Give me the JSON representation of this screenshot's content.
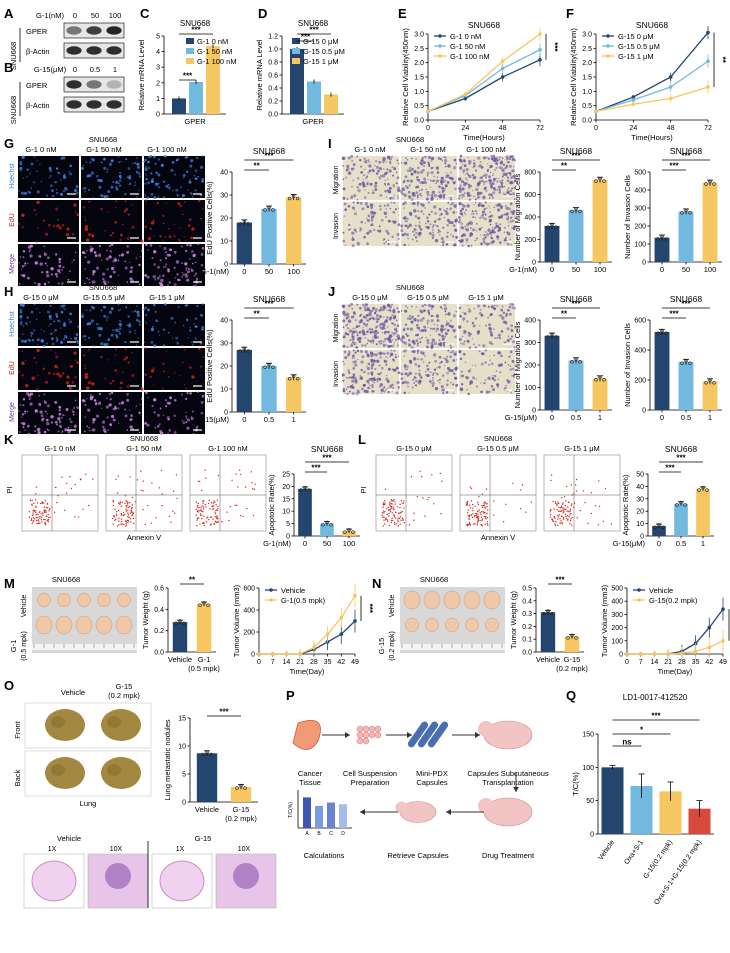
{
  "figure": {
    "palette": {
      "navy": "#24466e",
      "sky": "#72b9e0",
      "gold": "#f6c661",
      "red": "#d84a3e",
      "blot": "#1a1a1a",
      "hoechst": "#3b7fd6",
      "edu": "#c8211e",
      "merge": "#7a3a9e",
      "crystal": "#6e5fa5",
      "tumor": "#f0c8a8",
      "lung": "#a48740",
      "he": "#c58fc7"
    },
    "A": {
      "label": "A",
      "cell": "SNU668",
      "dose_title": "G-1(nM)",
      "doses": [
        "0",
        "50",
        "100"
      ],
      "bands": [
        "GPER",
        "β-Actin"
      ],
      "intensity": {
        "GPER": [
          0.55,
          0.82,
          0.95
        ],
        "β-Actin": [
          0.9,
          0.9,
          0.9
        ]
      }
    },
    "B": {
      "label": "B",
      "cell": "SNU668",
      "dose_title": "G-15(μM)",
      "doses": [
        "0",
        "0.5",
        "1"
      ],
      "bands": [
        "GPER",
        "β-Actin"
      ],
      "intensity": {
        "GPER": [
          0.9,
          0.55,
          0.25
        ],
        "β-Actin": [
          0.9,
          0.9,
          0.9
        ]
      }
    },
    "C": {
      "label": "C",
      "title": "SNU668",
      "ylabel": "Relative mRNA Level",
      "xlabel": "GPER",
      "legend": [
        "G-1 0 nM",
        "G-1 50 nM",
        "G-1 100 nM"
      ],
      "yticks": [
        "0",
        "1",
        "2",
        "3",
        "4",
        "5"
      ],
      "sig": [
        "***",
        "***"
      ]
    },
    "D": {
      "label": "D",
      "title": "SNU668",
      "ylabel": "Relative mRNA Level",
      "xlabel": "GPER",
      "legend": [
        "G-15 0 μM",
        "G-15 0.5 μM",
        "G-15 1 μM"
      ],
      "yticks": [
        "0.0",
        "0.2",
        "0.4",
        "0.6",
        "0.8",
        "1.0",
        "1.2"
      ],
      "sig": [
        "***",
        "***"
      ]
    },
    "E": {
      "label": "E",
      "title": "SNU668",
      "ylabel": "Relative Cell Viability(450nm)",
      "xlabel": "Time(Hours)",
      "legend": [
        "G-1 0 nM",
        "G-1 50 nM",
        "G-1 100 nM"
      ],
      "xticks": [
        "0",
        "24",
        "48",
        "72"
      ],
      "yticks": [
        "0.0",
        "0.5",
        "1.0",
        "1.5",
        "2.0",
        "2.5",
        "3.0"
      ],
      "sig": [
        "***",
        "*"
      ]
    },
    "F": {
      "label": "F",
      "title": "SNU668",
      "ylabel": "Relative Cell Viability(450nm)",
      "xlabel": "Time(Hours)",
      "legend": [
        "G-15 0 μM",
        "G-15 0.5 μM",
        "G-15 1 μM"
      ],
      "xticks": [
        "0",
        "24",
        "48",
        "72"
      ],
      "yticks": [
        "0.0",
        "0.5",
        "1.0",
        "1.5",
        "2.0",
        "2.5",
        "3.0"
      ],
      "sig": [
        "**",
        "***"
      ]
    },
    "G": {
      "label": "G",
      "cell": "SNU668",
      "cols": [
        "G-1 0 nM",
        "G-1 50 nM",
        "G-1 100 nM"
      ],
      "rows": [
        "Hoechst",
        "EdU",
        "Merge"
      ],
      "chart_title": "SNU668",
      "ylabel": "EdU Positive Cells(%)",
      "xcap": "G-1(nM)",
      "xticks": [
        "0",
        "50",
        "100"
      ],
      "yticks": [
        "0",
        "10",
        "20",
        "30",
        "40"
      ],
      "sig": [
        "***",
        "**"
      ]
    },
    "H": {
      "label": "H",
      "cell": "SNU668",
      "cols": [
        "G-15 0 μM",
        "G-15 0.5 μM",
        "G-15 1 μM"
      ],
      "rows": [
        "Hoechst",
        "EdU",
        "Merge"
      ],
      "chart_title": "SNU668",
      "ylabel": "EdU Positive Cells(%)",
      "xcap": "G-15(μM)",
      "xticks": [
        "0",
        "0.5",
        "1"
      ],
      "yticks": [
        "0",
        "10",
        "20",
        "30",
        "40"
      ],
      "sig": [
        "***",
        "**"
      ]
    },
    "I": {
      "label": "I",
      "cell": "SNU668",
      "cols": [
        "G-1 0 nM",
        "G-1 50 nM",
        "G-1 100 nM"
      ],
      "rows": [
        "Migration",
        "Invasion"
      ],
      "c1": {
        "title": "SNU668",
        "ylabel": "Number of Migration Cells",
        "yticks": [
          "0",
          "200",
          "400",
          "600",
          "800"
        ],
        "sig": [
          "***",
          "**"
        ]
      },
      "c2": {
        "title": "SNU668",
        "ylabel": "Number of Invasion Cells",
        "yticks": [
          "0",
          "100",
          "200",
          "300",
          "400",
          "500"
        ],
        "sig": [
          "***",
          "***"
        ]
      },
      "xcap": "G-1(nM)",
      "xticks": [
        "0",
        "50",
        "100"
      ]
    },
    "J": {
      "label": "J",
      "cell": "SNU668",
      "cols": [
        "G-15 0 μM",
        "G-15 0.5 μM",
        "G-15 1 μM"
      ],
      "rows": [
        "Migration",
        "Invasion"
      ],
      "c1": {
        "title": "SNU668",
        "ylabel": "Number of Migration Cells",
        "yticks": [
          "0",
          "100",
          "200",
          "300",
          "400"
        ],
        "sig": [
          "***",
          "**"
        ]
      },
      "c2": {
        "title": "SNU668",
        "ylabel": "Number of Invasion Cells",
        "yticks": [
          "0",
          "200",
          "400",
          "600"
        ],
        "sig": [
          "***",
          "***"
        ]
      },
      "xcap": "G-15(μM)",
      "xticks": [
        "0",
        "0.5",
        "1"
      ]
    },
    "K": {
      "label": "K",
      "cell": "SNU668",
      "cols": [
        "G-1 0 nM",
        "G-1 50 nM",
        "G-1 100 nM"
      ],
      "yaxis": "PI",
      "xaxis": "Annexin V",
      "chart_title": "SNU668",
      "ylabel": "Apoptotic Rate(%)",
      "xcap": "G-1(nM)",
      "xticks": [
        "0",
        "50",
        "100"
      ],
      "yticks": [
        "0",
        "5",
        "10",
        "15",
        "20",
        "25"
      ],
      "sig": [
        "***",
        "***"
      ]
    },
    "L": {
      "label": "L",
      "cell": "SNU668",
      "cols": [
        "G-15 0 μM",
        "G-15 0.5 μM",
        "G-15 1 μM"
      ],
      "yaxis": "PI",
      "xaxis": "Annexin V",
      "chart_title": "SNU668",
      "ylabel": "Apoptotic Rate(%)",
      "xcap": "G-15(μM)",
      "xticks": [
        "0",
        "0.5",
        "1"
      ],
      "yticks": [
        "0",
        "10",
        "20",
        "30",
        "40",
        "50"
      ],
      "sig": [
        "***",
        "***"
      ]
    },
    "M": {
      "label": "M",
      "cell": "SNU668",
      "side_treat": "G-1",
      "side_dose": "(0.5 mpk)",
      "side_vehicle": "Vehicle",
      "bar": {
        "ylabel": "Tumor Weight (g)",
        "yticks": [
          "0.0",
          "0.2",
          "0.4",
          "0.6"
        ],
        "xticks": [
          "Vehicle",
          "G-1"
        ],
        "xsub": "(0.5 mpk)",
        "sig": "**"
      },
      "curve": {
        "ylabel": "Tumor Volume (mm3)",
        "xlabel": "Time(Day)",
        "legend": [
          "Vehicle",
          "G-1(0.5 mpk)"
        ],
        "xticks": [
          "0",
          "7",
          "14",
          "21",
          "28",
          "35",
          "42",
          "49"
        ],
        "yticks": [
          "0",
          "200",
          "400",
          "600"
        ],
        "sig": "***"
      }
    },
    "N": {
      "label": "N",
      "cell": "SNU668",
      "side_treat": "G-15",
      "side_dose": "(0.2 mpk)",
      "side_vehicle": "Vehicle",
      "bar": {
        "ylabel": "Tumor Weight (g)",
        "yticks": [
          "0.0",
          "0.1",
          "0.2",
          "0.3",
          "0.4",
          "0.5"
        ],
        "xticks": [
          "Vehicle",
          "G-15"
        ],
        "xsub": "(0.2 mpk)",
        "sig": "***"
      },
      "curve": {
        "ylabel": "Tumor Volume (mm3)",
        "xlabel": "Time(Day)",
        "legend": [
          "Vehicle",
          "G-15(0.2 mpk)"
        ],
        "xticks": [
          "0",
          "7",
          "14",
          "21",
          "28",
          "35",
          "42",
          "49"
        ],
        "yticks": [
          "0",
          "100",
          "200",
          "300",
          "400",
          "500"
        ],
        "sig": "***"
      }
    },
    "O": {
      "label": "O",
      "cols": [
        "Vehicle",
        "G-15"
      ],
      "col2sub": "(0.2 mpk)",
      "rows": [
        "Front",
        "Back"
      ],
      "organ": "Lung",
      "bar": {
        "ylabel": "Lung metastatic nodules",
        "yticks": [
          "0",
          "5",
          "10",
          "15"
        ],
        "xticks": [
          "Vehicle",
          "G-15"
        ],
        "xsub": "(0.2 mpk)",
        "sig": "***"
      },
      "histo": {
        "groups": [
          "Vehicle",
          "G-15"
        ],
        "mags": [
          "1X",
          "10X",
          "1X",
          "10X"
        ]
      }
    },
    "P": {
      "label": "P",
      "steps": [
        "Cancer Tissue",
        "Cell Suspension Preparation",
        "Mini-PDX Capsules",
        "Capsules Subcutaneous Transplantation",
        "Drug Treatment",
        "Retrieve Capsules",
        "Calculations"
      ],
      "mini_y": "T/C(%)",
      "mini_x": [
        "A",
        "B",
        "C",
        "D"
      ]
    },
    "Q": {
      "label": "Q",
      "title": "LD1-0017-412520",
      "ylabel": "T/C(%)",
      "yticks": [
        "0",
        "50",
        "100",
        "150"
      ],
      "groups": [
        "Vehicle",
        "Oxa+S-1",
        "G-15(0.2 mpk)",
        "Oxa+S-1+G-15(0.2 mpk)"
      ],
      "sig": [
        "ns",
        "*",
        "***"
      ]
    },
    "chart_data": [
      {
        "panel": "C",
        "type": "bar",
        "categories": [
          "GPER"
        ],
        "series": [
          {
            "name": "G-1 0 nM",
            "values": [
              1.0
            ]
          },
          {
            "name": "G-1 50 nM",
            "values": [
              2.05
            ]
          },
          {
            "name": "G-1 100 nM",
            "values": [
              4.35
            ]
          }
        ],
        "ylim": [
          0,
          5
        ]
      },
      {
        "panel": "D",
        "type": "bar",
        "categories": [
          "GPER"
        ],
        "series": [
          {
            "name": "G-15 0 μM",
            "values": [
              1.0
            ]
          },
          {
            "name": "G-15 0.5 μM",
            "values": [
              0.5
            ]
          },
          {
            "name": "G-15 1 μM",
            "values": [
              0.3
            ]
          }
        ],
        "ylim": [
          0,
          1.2
        ]
      },
      {
        "panel": "E",
        "type": "line",
        "x": [
          0,
          24,
          48,
          72
        ],
        "series": [
          {
            "name": "G-1 0 nM",
            "values": [
              0.3,
              0.75,
              1.5,
              2.1
            ]
          },
          {
            "name": "G-1 50 nM",
            "values": [
              0.3,
              0.85,
              1.8,
              2.45
            ]
          },
          {
            "name": "G-1 100 nM",
            "values": [
              0.3,
              0.9,
              2.05,
              3.0
            ]
          }
        ],
        "ylim": [
          0,
          3
        ]
      },
      {
        "panel": "F",
        "type": "line",
        "x": [
          0,
          24,
          48,
          72
        ],
        "series": [
          {
            "name": "G-15 0 μM",
            "values": [
              0.3,
              0.8,
              1.5,
              3.05
            ]
          },
          {
            "name": "G-15 0.5 μM",
            "values": [
              0.3,
              0.7,
              1.15,
              2.05
            ]
          },
          {
            "name": "G-15 1 μM",
            "values": [
              0.3,
              0.55,
              0.75,
              1.15
            ]
          }
        ],
        "ylim": [
          0,
          3
        ]
      },
      {
        "panel": "G",
        "type": "bar",
        "categories": [
          "0",
          "50",
          "100"
        ],
        "values": [
          18,
          24,
          29
        ],
        "ylim": [
          0,
          40
        ]
      },
      {
        "panel": "H",
        "type": "bar",
        "categories": [
          "0",
          "0.5",
          "1"
        ],
        "values": [
          27,
          20,
          15
        ],
        "ylim": [
          0,
          40
        ]
      },
      {
        "panel": "I-migration",
        "type": "bar",
        "categories": [
          "0",
          "50",
          "100"
        ],
        "values": [
          320,
          460,
          730
        ],
        "ylim": [
          0,
          800
        ]
      },
      {
        "panel": "I-invasion",
        "type": "bar",
        "categories": [
          "0",
          "50",
          "100"
        ],
        "values": [
          135,
          280,
          440
        ],
        "ylim": [
          0,
          500
        ]
      },
      {
        "panel": "J-migration",
        "type": "bar",
        "categories": [
          "0",
          "0.5",
          "1"
        ],
        "values": [
          330,
          220,
          140
        ],
        "ylim": [
          0,
          400
        ]
      },
      {
        "panel": "J-invasion",
        "type": "bar",
        "categories": [
          "0",
          "0.5",
          "1"
        ],
        "values": [
          520,
          320,
          190
        ],
        "ylim": [
          0,
          600
        ]
      },
      {
        "panel": "K",
        "type": "bar",
        "categories": [
          "0",
          "50",
          "100"
        ],
        "values": [
          19,
          5,
          2
        ],
        "ylim": [
          0,
          25
        ]
      },
      {
        "panel": "L",
        "type": "bar",
        "categories": [
          "0",
          "0.5",
          "1"
        ],
        "values": [
          8,
          26,
          38
        ],
        "ylim": [
          0,
          50
        ]
      },
      {
        "panel": "M-weight",
        "type": "bar",
        "categories": [
          "Vehicle",
          "G-1 (0.5 mpk)"
        ],
        "values": [
          0.28,
          0.45
        ],
        "ylim": [
          0,
          0.6
        ]
      },
      {
        "panel": "M-volume",
        "type": "line",
        "x": [
          0,
          7,
          14,
          21,
          28,
          35,
          42,
          49
        ],
        "series": [
          {
            "name": "Vehicle",
            "values": [
              0,
              0,
              0,
              0,
              40,
              110,
              180,
              300
            ]
          },
          {
            "name": "G-1(0.5 mpk)",
            "values": [
              0,
              0,
              0,
              0,
              60,
              180,
              330,
              530
            ]
          }
        ],
        "ylim": [
          0,
          600
        ]
      },
      {
        "panel": "N-weight",
        "type": "bar",
        "categories": [
          "Vehicle",
          "G-15 (0.2 mpk)"
        ],
        "values": [
          0.31,
          0.12
        ],
        "ylim": [
          0,
          0.5
        ]
      },
      {
        "panel": "N-volume",
        "type": "line",
        "x": [
          0,
          7,
          14,
          21,
          28,
          35,
          42,
          49
        ],
        "series": [
          {
            "name": "Vehicle",
            "values": [
              0,
              0,
              0,
              0,
              20,
              80,
              200,
              340
            ]
          },
          {
            "name": "G-15(0.2 mpk)",
            "values": [
              0,
              0,
              0,
              0,
              5,
              20,
              50,
              100
            ]
          }
        ],
        "ylim": [
          0,
          500
        ]
      },
      {
        "panel": "O",
        "type": "bar",
        "categories": [
          "Vehicle",
          "G-15 (0.2 mpk)"
        ],
        "values": [
          8.7,
          2.7
        ],
        "ylim": [
          0,
          15
        ]
      },
      {
        "panel": "Q",
        "type": "bar",
        "categories": [
          "Vehicle",
          "Oxa+S-1",
          "G-15(0.2 mpk)",
          "Oxa+S-1+G-15(0.2 mpk)"
        ],
        "values": [
          100,
          72,
          64,
          38
        ],
        "ylim": [
          0,
          150
        ]
      }
    ]
  }
}
